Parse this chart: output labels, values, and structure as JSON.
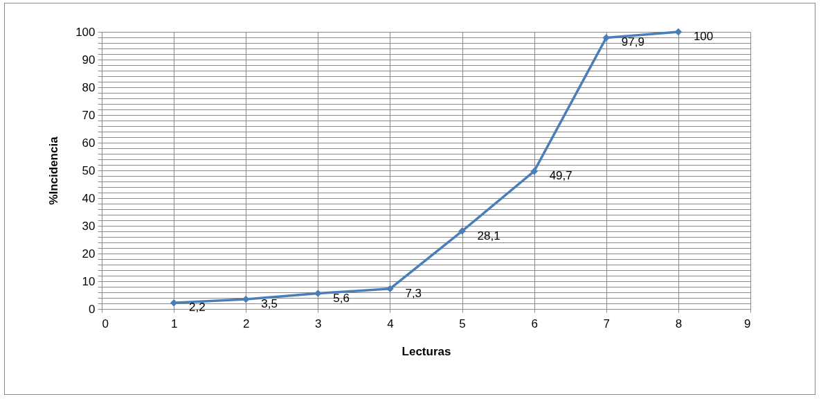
{
  "chart_data": {
    "type": "line",
    "xlabel": "Lecturas",
    "ylabel": "%Incidencia",
    "x": [
      1,
      2,
      3,
      4,
      5,
      6,
      7,
      8
    ],
    "series": [
      {
        "color": "#4a7ebb",
        "values": [
          2.2,
          3.5,
          5.6,
          7.3,
          28.1,
          49.7,
          97.9,
          100
        ],
        "value_labels": [
          "2,2",
          "3,5",
          "5,6",
          "7,3",
          "28,1",
          "49,7",
          "97,9",
          "100"
        ]
      }
    ],
    "xlim": [
      0,
      9
    ],
    "xticks": [
      0,
      1,
      2,
      3,
      4,
      5,
      6,
      7,
      8,
      9
    ],
    "ylim": [
      0,
      100
    ],
    "yticks": [
      0,
      {
        "value": 2,
        "label": null
      },
      {
        "value": 4,
        "label": null
      },
      {
        "value": 6,
        "label": null
      },
      {
        "value": 8,
        "label": null
      },
      10,
      {
        "value": 12,
        "label": null
      },
      {
        "value": 14,
        "label": null
      },
      {
        "value": 16,
        "label": null
      },
      {
        "value": 18,
        "label": null
      },
      20,
      {
        "value": 22,
        "label": null
      },
      {
        "value": 24,
        "label": null
      },
      {
        "value": 26,
        "label": null
      },
      {
        "value": 28,
        "label": null
      },
      30,
      {
        "value": 32,
        "label": null
      },
      {
        "value": 34,
        "label": null
      },
      {
        "value": 36,
        "label": null
      },
      {
        "value": 38,
        "label": null
      },
      40,
      {
        "value": 42,
        "label": null
      },
      {
        "value": 44,
        "label": null
      },
      {
        "value": 46,
        "label": null
      },
      {
        "value": 48,
        "label": null
      },
      50,
      {
        "value": 52,
        "label": null
      },
      {
        "value": 54,
        "label": null
      },
      {
        "value": 56,
        "label": null
      },
      {
        "value": 58,
        "label": null
      },
      60,
      {
        "value": 62,
        "label": null
      },
      {
        "value": 64,
        "label": null
      },
      {
        "value": 66,
        "label": null
      },
      {
        "value": 68,
        "label": null
      },
      70,
      {
        "value": 72,
        "label": null
      },
      {
        "value": 74,
        "label": null
      },
      {
        "value": 76,
        "label": null
      },
      {
        "value": 78,
        "label": null
      },
      80,
      {
        "value": 82,
        "label": null
      },
      {
        "value": 84,
        "label": null
      },
      {
        "value": 86,
        "label": null
      },
      {
        "value": 88,
        "label": null
      },
      90,
      {
        "value": 92,
        "label": null
      },
      {
        "value": 94,
        "label": null
      },
      {
        "value": 96,
        "label": null
      },
      {
        "value": 98,
        "label": null
      },
      100
    ],
    "grid": true,
    "marker": "diamond",
    "line_style": "solid"
  }
}
